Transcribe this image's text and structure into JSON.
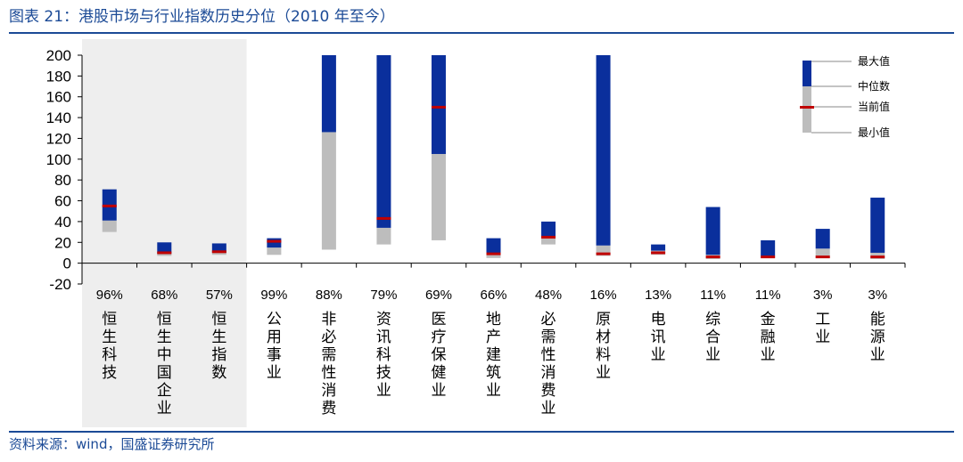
{
  "header": {
    "title": "图表 21：港股市场与行业指数历史分位（2010 年至今）"
  },
  "footer": {
    "source": "资料来源：wind，国盛证券研究所"
  },
  "colors": {
    "max_segment": "#0a2f9c",
    "median_segment": "#bdbdbd",
    "current_marker": "#c00000",
    "shade": "#eeeeee",
    "text": "#000000",
    "brand": "#1b4a96"
  },
  "legend": {
    "max": "最大值",
    "median": "中位数",
    "current": "当前值",
    "min": "最小值"
  },
  "chart_data": {
    "type": "floating-bar",
    "title": "港股市场与行业指数历史分位（2010 年至今）",
    "ylim": [
      -20,
      200
    ],
    "yticks": [
      -20,
      0,
      20,
      40,
      60,
      80,
      100,
      120,
      140,
      160,
      180,
      200
    ],
    "shaded_categories": [
      "恒生科技",
      "恒生中国企业",
      "恒生指数"
    ],
    "categories": [
      {
        "name": "恒生科技",
        "percentile": "96%",
        "min": 30,
        "median": 41,
        "max": 71,
        "current": 55
      },
      {
        "name": "恒生中国企业",
        "percentile": "68%",
        "min": 7,
        "median": 9,
        "max": 20,
        "current": 10
      },
      {
        "name": "恒生指数",
        "percentile": "57%",
        "min": 8,
        "median": 10,
        "max": 19,
        "current": 11
      },
      {
        "name": "公用事业",
        "percentile": "99%",
        "min": 8,
        "median": 15,
        "max": 24,
        "current": 21
      },
      {
        "name": "非必需性消费",
        "percentile": "88%",
        "min": 13,
        "median": 126,
        "max": 200,
        "current": null
      },
      {
        "name": "资讯科技业",
        "percentile": "79%",
        "min": 18,
        "median": 34,
        "max": 200,
        "current": 43
      },
      {
        "name": "医疗保健业",
        "percentile": "69%",
        "min": 22,
        "median": 105,
        "max": 200,
        "current": 150
      },
      {
        "name": "地产建筑业",
        "percentile": "66%",
        "min": 5,
        "median": 9,
        "max": 24,
        "current": 9
      },
      {
        "name": "必需性消费业",
        "percentile": "48%",
        "min": 18,
        "median": 25,
        "max": 40,
        "current": 25
      },
      {
        "name": "原材料业",
        "percentile": "16%",
        "min": 7,
        "median": 17,
        "max": 200,
        "current": 9
      },
      {
        "name": "电讯业",
        "percentile": "13%",
        "min": 8,
        "median": 12,
        "max": 18,
        "current": 10
      },
      {
        "name": "综合业",
        "percentile": "11%",
        "min": 4,
        "median": 8,
        "max": 54,
        "current": 6
      },
      {
        "name": "金融业",
        "percentile": "11%",
        "min": 5,
        "median": 7,
        "max": 22,
        "current": 6
      },
      {
        "name": "工业",
        "percentile": "3%",
        "min": 5,
        "median": 14,
        "max": 33,
        "current": 6
      },
      {
        "name": "能源业",
        "percentile": "3%",
        "min": 4,
        "median": 10,
        "max": 63,
        "current": 6
      }
    ]
  }
}
